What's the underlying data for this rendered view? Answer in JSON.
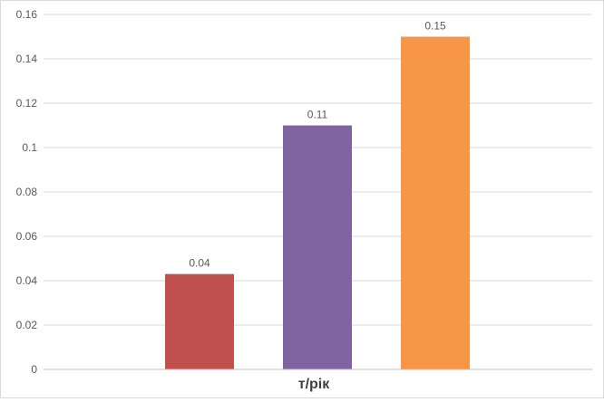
{
  "chart_data": {
    "type": "bar",
    "categories": [
      ""
    ],
    "series": [
      {
        "values": [
          0.043
        ],
        "label": "0.04",
        "color": "#c0504d"
      },
      {
        "values": [
          0.11
        ],
        "label": "0.11",
        "color": "#8064a2"
      },
      {
        "values": [
          0.15
        ],
        "label": "0.15",
        "color": "#f79646"
      }
    ],
    "xlabel": "т/рік",
    "ylabel": "",
    "ylim": [
      0,
      0.16
    ],
    "yticks": [
      "0",
      "0.02",
      "0.04",
      "0.06",
      "0.08",
      "0.1",
      "0.12",
      "0.14",
      "0.16"
    ],
    "grid": true,
    "legend": "none"
  },
  "colors": {
    "grid": "#d9d9d9",
    "axis": "#bfbfbf",
    "text": "#595959",
    "xlabel": "#404040"
  }
}
